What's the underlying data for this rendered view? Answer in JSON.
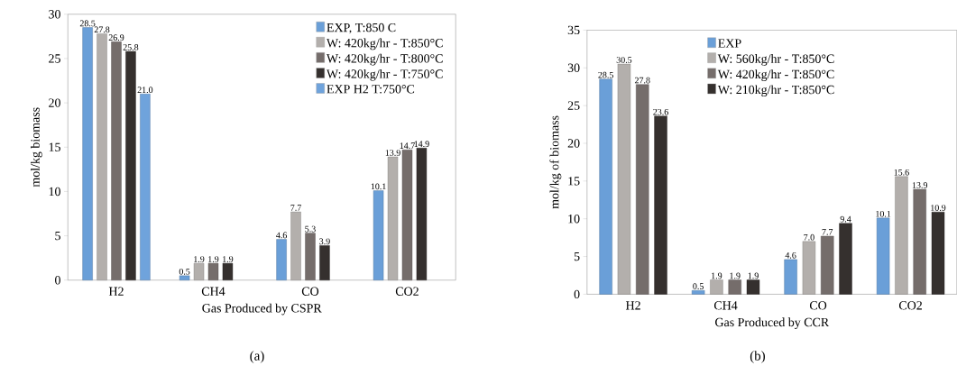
{
  "chart_data": [
    {
      "type": "bar",
      "categories": [
        "H2",
        "CH4",
        "CO",
        "CO2"
      ],
      "xlabel": "Gas Produced by CSPR",
      "ylabel": "mol/kg biomass",
      "ylim": [
        0,
        30
      ],
      "yticks": [
        0,
        5,
        10,
        15,
        20,
        25,
        30
      ],
      "legend": "top right",
      "annotations": [
        "(a)"
      ],
      "series": [
        {
          "name": "EXP, T:850 C",
          "color": "#6a9fd8",
          "values": [
            28.5,
            0.5,
            4.6,
            10.1
          ],
          "value_labels": [
            "28.5",
            "0.5",
            "4.6",
            "10.1"
          ]
        },
        {
          "name": "W: 420kg/hr - T:850°C",
          "color": "#b3afac",
          "values": [
            27.8,
            1.9,
            7.7,
            13.9
          ],
          "value_labels": [
            "27.8",
            "1.9",
            "7.7",
            "13.9"
          ]
        },
        {
          "name": "W: 420kg/hr - T:800°C",
          "color": "#756d6b",
          "values": [
            26.9,
            1.9,
            5.3,
            14.7
          ],
          "value_labels": [
            "26.9",
            "1.9",
            "5.3",
            "14.7"
          ]
        },
        {
          "name": "W: 420kg/hr - T:750°C",
          "color": "#35302e",
          "values": [
            25.8,
            1.9,
            3.9,
            14.9
          ],
          "value_labels": [
            "25.8",
            "1.9",
            "3.9",
            "14.9"
          ]
        },
        {
          "name": "EXP H2 T:750°C",
          "color": "#6fa3dc",
          "values": [
            21.0,
            null,
            null,
            null
          ],
          "value_labels": [
            "21.0",
            null,
            null,
            null
          ]
        }
      ]
    },
    {
      "type": "bar",
      "categories": [
        "H2",
        "CH4",
        "CO",
        "CO2"
      ],
      "xlabel": "Gas Produced by CCR",
      "ylabel": "mol/kg of biomass",
      "ylim": [
        0,
        35
      ],
      "yticks": [
        0,
        5,
        10,
        15,
        20,
        25,
        30,
        35
      ],
      "legend": "top",
      "annotations": [
        "(b)"
      ],
      "series": [
        {
          "name": "EXP",
          "color": "#6a9fd8",
          "values": [
            28.5,
            0.5,
            4.6,
            10.1
          ],
          "value_labels": [
            "28.5",
            "0.5",
            "4.6",
            "10.1"
          ]
        },
        {
          "name": "W: 560kg/hr - T:850°C",
          "color": "#b3afac",
          "values": [
            30.5,
            1.9,
            7.0,
            15.6
          ],
          "value_labels": [
            "30.5",
            "1.9",
            "7.0",
            "15.6"
          ]
        },
        {
          "name": "W: 420kg/hr - T:850°C",
          "color": "#756d6b",
          "values": [
            27.8,
            1.9,
            7.7,
            13.9
          ],
          "value_labels": [
            "27.8",
            "1.9",
            "7.7",
            "13.9"
          ]
        },
        {
          "name": "W: 210kg/hr - T:850°C",
          "color": "#35302e",
          "values": [
            23.6,
            1.9,
            9.4,
            10.9
          ],
          "value_labels": [
            "23.6",
            "1.9",
            "9.4",
            "10.9"
          ]
        }
      ]
    }
  ]
}
